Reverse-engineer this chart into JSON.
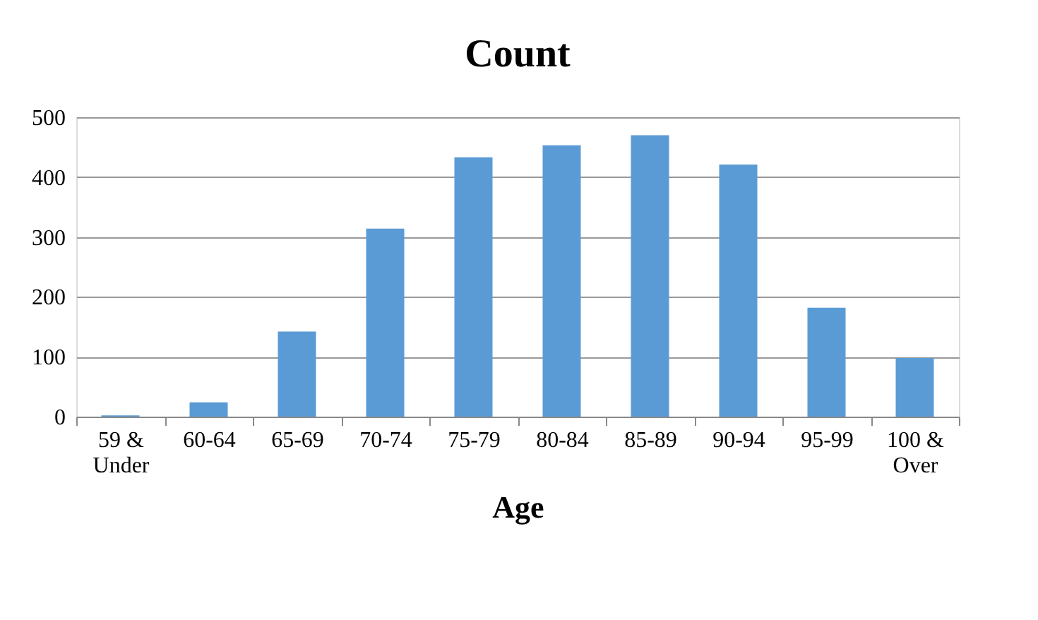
{
  "chart_data": {
    "type": "bar",
    "title": "Count",
    "xlabel": "Age",
    "categories": [
      "59 & Under",
      "60-64",
      "65-69",
      "70-74",
      "75-79",
      "80-84",
      "85-89",
      "90-94",
      "95-99",
      "100 & Over"
    ],
    "values": [
      2,
      24,
      142,
      314,
      433,
      453,
      470,
      421,
      182,
      98
    ],
    "color": "#5b9bd5",
    "ylim": [
      0,
      500
    ],
    "yticks": [
      0,
      100,
      200,
      300,
      400,
      500
    ],
    "grid": "y"
  }
}
